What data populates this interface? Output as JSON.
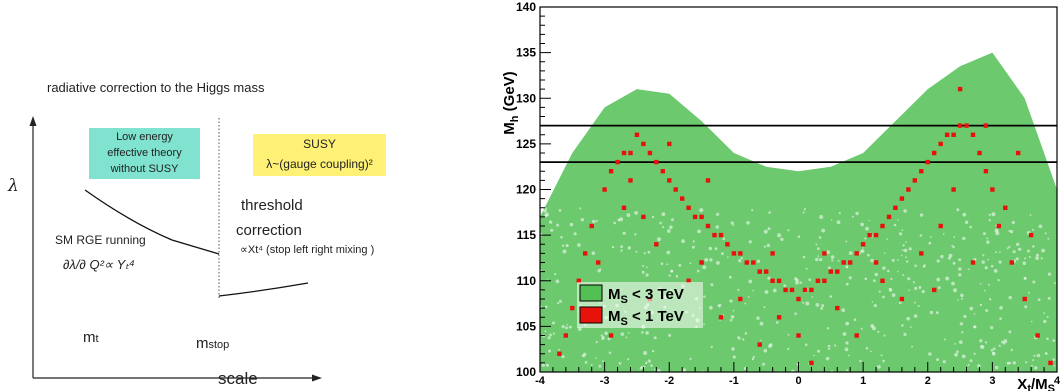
{
  "left_diagram": {
    "title": "radiative correction to the Higgs mass",
    "y_axis_symbol": "λ",
    "x_axis_label": "scale",
    "mt_label_base": "m",
    "mt_label_sub": "t",
    "mstop_label_base": "m",
    "mstop_label_sub": "stop",
    "low_energy_box": [
      "Low energy",
      "effective theory",
      "without SUSY"
    ],
    "susy_box_line1": "SUSY",
    "susy_box_line2": "λ~(gauge coupling)²",
    "threshold_line1": "threshold",
    "threshold_line2": "correction",
    "threshold_note": "∝Xt⁴ (stop left right mixing )",
    "sm_rge_label": "SM RGE running",
    "sm_rge_formula": "∂λ/∂ Q²∝ Yₜ⁴"
  },
  "chart_data": {
    "type": "scatter",
    "ylabel_base": "M",
    "ylabel_sub": "h",
    "ylabel_unit": " (GeV)",
    "xlabel_base": "X",
    "xlabel_sub1": "t",
    "xlabel_mid": "/M",
    "xlabel_sub2": "S",
    "xlim": [
      -4,
      4
    ],
    "ylim": [
      100,
      140
    ],
    "x_ticks": [
      "-4",
      "-3",
      "-2",
      "-1",
      "0",
      "1",
      "2",
      "3",
      "4"
    ],
    "y_ticks": [
      "100",
      "105",
      "110",
      "115",
      "120",
      "125",
      "130",
      "135",
      "140"
    ],
    "horizontal_lines": [
      123,
      127
    ],
    "legend_location": "lower-left",
    "series": [
      {
        "name_base": "M",
        "name_sub": "S",
        "name_rest": " < 3 TeV",
        "color": "#52c055",
        "envelope_upper": [
          [
            -4,
            117
          ],
          [
            -3.5,
            124
          ],
          [
            -3,
            129
          ],
          [
            -2.5,
            131
          ],
          [
            -2,
            130.5
          ],
          [
            -1.5,
            127.5
          ],
          [
            -1,
            124
          ],
          [
            -0.5,
            122.5
          ],
          [
            0,
            122
          ],
          [
            0.5,
            122.5
          ],
          [
            1,
            124
          ],
          [
            1.5,
            127.5
          ],
          [
            2,
            131
          ],
          [
            2.5,
            133.5
          ],
          [
            3,
            135
          ],
          [
            3.5,
            130
          ],
          [
            4,
            120
          ]
        ],
        "envelope_lower": [
          [
            -4,
            100
          ],
          [
            4,
            100
          ]
        ]
      },
      {
        "name_base": "M",
        "name_sub": "S",
        "name_rest": " < 1 TeV",
        "color": "#e8120c",
        "points": [
          [
            -3.0,
            120
          ],
          [
            -2.9,
            122
          ],
          [
            -2.8,
            123
          ],
          [
            -2.7,
            124
          ],
          [
            -2.6,
            124
          ],
          [
            -2.5,
            126
          ],
          [
            -2.4,
            125
          ],
          [
            -2.3,
            124
          ],
          [
            -2.2,
            123
          ],
          [
            -2.1,
            122
          ],
          [
            -2.0,
            121
          ],
          [
            -1.9,
            120
          ],
          [
            -1.8,
            119
          ],
          [
            -1.7,
            118
          ],
          [
            -1.6,
            117
          ],
          [
            -1.5,
            117
          ],
          [
            -1.4,
            116
          ],
          [
            -1.3,
            115
          ],
          [
            -1.2,
            115
          ],
          [
            -1.1,
            114
          ],
          [
            -1.0,
            113
          ],
          [
            -0.9,
            113
          ],
          [
            -0.8,
            112
          ],
          [
            -0.7,
            112
          ],
          [
            -0.6,
            111
          ],
          [
            -0.5,
            111
          ],
          [
            -0.4,
            110
          ],
          [
            -0.3,
            110
          ],
          [
            -0.2,
            109
          ],
          [
            -0.1,
            109
          ],
          [
            0.0,
            108
          ],
          [
            0.1,
            109
          ],
          [
            0.2,
            109
          ],
          [
            0.3,
            110
          ],
          [
            0.4,
            110
          ],
          [
            0.5,
            111
          ],
          [
            0.6,
            111
          ],
          [
            0.7,
            112
          ],
          [
            0.8,
            112
          ],
          [
            0.9,
            113
          ],
          [
            1.0,
            114
          ],
          [
            1.1,
            115
          ],
          [
            1.2,
            115
          ],
          [
            1.3,
            116
          ],
          [
            1.4,
            117
          ],
          [
            1.5,
            118
          ],
          [
            1.6,
            119
          ],
          [
            1.7,
            120
          ],
          [
            1.8,
            121
          ],
          [
            1.9,
            122
          ],
          [
            2.0,
            123
          ],
          [
            2.1,
            124
          ],
          [
            2.2,
            125
          ],
          [
            2.3,
            126
          ],
          [
            2.4,
            126
          ],
          [
            2.5,
            127
          ],
          [
            2.6,
            127
          ],
          [
            2.7,
            126
          ],
          [
            2.8,
            124
          ],
          [
            2.9,
            122
          ],
          [
            3.0,
            120
          ],
          [
            -3.2,
            116
          ],
          [
            -3.3,
            113
          ],
          [
            -3.4,
            110
          ],
          [
            -3.5,
            107
          ],
          [
            -3.6,
            104
          ],
          [
            -3.7,
            102
          ],
          [
            -2.7,
            118
          ],
          [
            -2.2,
            114
          ],
          [
            -1.7,
            110
          ],
          [
            -1.2,
            106
          ],
          [
            -0.6,
            103
          ],
          [
            0.2,
            101
          ],
          [
            0.9,
            104
          ],
          [
            1.6,
            108
          ],
          [
            2.2,
            116
          ],
          [
            2.7,
            112
          ],
          [
            3.1,
            116
          ],
          [
            3.3,
            112
          ],
          [
            3.5,
            108
          ],
          [
            3.7,
            104
          ],
          [
            3.9,
            101
          ],
          [
            -3.3,
            108
          ],
          [
            -2.4,
            117
          ],
          [
            -1.5,
            112
          ],
          [
            -0.9,
            108
          ],
          [
            -0.3,
            106
          ],
          [
            0.6,
            107
          ],
          [
            1.3,
            110
          ],
          [
            1.9,
            113
          ],
          [
            2.4,
            120
          ],
          [
            3.2,
            118
          ],
          [
            2.5,
            131
          ],
          [
            -2.0,
            125
          ],
          [
            -1.4,
            121
          ],
          [
            1.2,
            112
          ],
          [
            -0.4,
            113
          ],
          [
            0.4,
            113
          ],
          [
            -2.6,
            121
          ],
          [
            2.9,
            127
          ],
          [
            3.4,
            124
          ],
          [
            3.6,
            115
          ],
          [
            -3.1,
            112
          ],
          [
            -2.9,
            104
          ],
          [
            -2.3,
            108
          ],
          [
            2.1,
            109
          ],
          [
            0.0,
            104
          ]
        ]
      }
    ]
  }
}
